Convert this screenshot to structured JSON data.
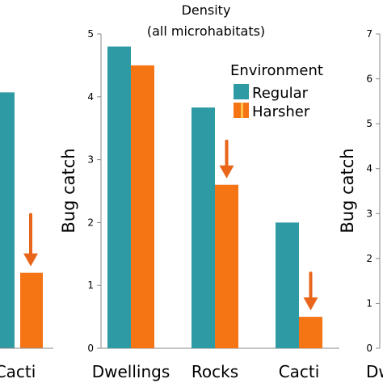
{
  "chart_data": [
    {
      "type": "bar",
      "panel": "left (cropped)",
      "categories": [
        "Cacti"
      ],
      "series": [
        {
          "name": "Regular",
          "values": [
            4.07
          ]
        },
        {
          "name": "Harsher",
          "values": [
            1.2
          ]
        }
      ],
      "arrows_over": [
        "Harsher"
      ]
    },
    {
      "type": "bar",
      "panel": "center",
      "title": "Density",
      "subtitle": "(all microhabitats)",
      "ylabel": "Bug catch",
      "xlabel": "",
      "categories": [
        "Dwellings",
        "Rocks",
        "Cacti"
      ],
      "series": [
        {
          "name": "Regular",
          "values": [
            4.8,
            3.83,
            2.0
          ]
        },
        {
          "name": "Harsher",
          "values": [
            4.5,
            2.6,
            0.5
          ]
        }
      ],
      "ylim": [
        0,
        5
      ],
      "yticks": [
        "0",
        "1",
        "2",
        "3",
        "4",
        "5"
      ],
      "arrows_over": [
        "Rocks",
        "Cacti"
      ],
      "legend": {
        "title": "Environment",
        "entries": [
          "Regular",
          "Harsher"
        ],
        "position": "top-right"
      }
    },
    {
      "type": "bar",
      "panel": "right (cropped)",
      "ylabel": "Bug catch",
      "categories": [
        "Dw"
      ],
      "ylim": [
        0,
        7
      ],
      "yticks": [
        "0",
        "1",
        "2",
        "3",
        "4",
        "5",
        "6",
        "7"
      ]
    }
  ],
  "colors": {
    "Regular": "#2e9aa3",
    "Harsher": "#f57414",
    "arrow": "#e8651a",
    "axis": "#888888"
  }
}
